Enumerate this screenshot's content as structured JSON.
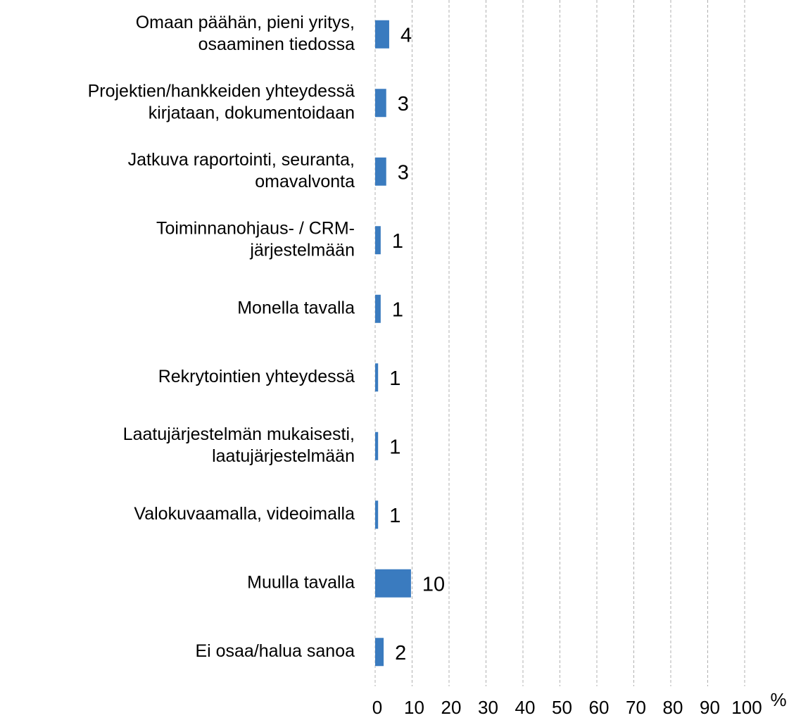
{
  "chart_data": {
    "type": "bar",
    "orientation": "horizontal",
    "categories": [
      [
        "Omaan päähän, pieni yritys,",
        "osaaminen tiedossa"
      ],
      [
        "Projektien/hankkeiden yhteydessä",
        "kirjataan, dokumentoidaan"
      ],
      [
        "Jatkuva raportointi, seuranta,",
        "omavalvonta"
      ],
      [
        "Toiminnanohjaus- / CRM-",
        "järjestelmään"
      ],
      [
        "Monella tavalla"
      ],
      [
        "Rekrytointien yhteydessä"
      ],
      [
        "Laatujärjestelmän mukaisesti,",
        "laatujärjestelmään"
      ],
      [
        "Valokuvaamalla, videoimalla"
      ],
      [
        "Muulla tavalla"
      ],
      [
        "Ei osaa/halua sanoa"
      ]
    ],
    "values": [
      3.8,
      3.0,
      3.0,
      1.5,
      1.5,
      0.8,
      0.8,
      0.8,
      9.7,
      2.3
    ],
    "value_labels": [
      "4",
      "3",
      "3",
      "1",
      "1",
      "1",
      "1",
      "1",
      "10",
      "2"
    ],
    "color": "#3a7bbf",
    "xlabel": "%",
    "xlim": [
      0,
      100
    ],
    "xticks": [
      0,
      10,
      20,
      30,
      40,
      50,
      60,
      70,
      80,
      90,
      100
    ],
    "grid": true
  }
}
